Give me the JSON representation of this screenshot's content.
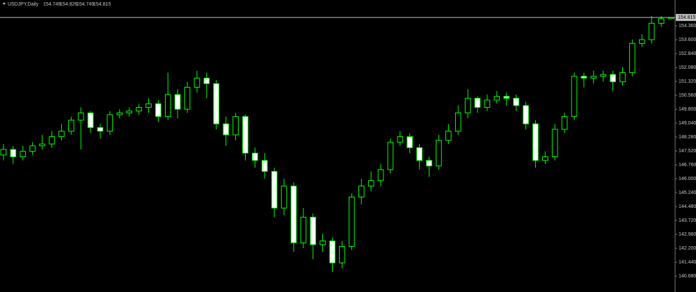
{
  "chart_data": {
    "type": "candlestick",
    "title": "USDJPY,Daily",
    "open": [
      147.3,
      147.6,
      147.2,
      147.5,
      147.8,
      147.9,
      148.3,
      148.6,
      149.2,
      149.6,
      148.8,
      148.6,
      149.5,
      149.6,
      149.7,
      149.9,
      150.1,
      149.4,
      150.6,
      149.8,
      151.0,
      151.5,
      151.2,
      149.0,
      148.4,
      149.4,
      147.4,
      147.0,
      146.4,
      144.4,
      145.6,
      142.5,
      143.9,
      142.4,
      142.6,
      141.4,
      142.3,
      145.0,
      145.6,
      145.9,
      146.5,
      148.0,
      148.3,
      147.7,
      147.0,
      146.7,
      148.1,
      148.6,
      149.6,
      150.4,
      149.9,
      150.3,
      150.5,
      150.4,
      150.0,
      149.0,
      147.0,
      147.2,
      148.7,
      149.4,
      151.6,
      151.5,
      151.6,
      151.7,
      151.3,
      151.8,
      153.4,
      153.6,
      154.5,
      154.749
    ],
    "high": [
      147.9,
      147.8,
      147.8,
      148.0,
      148.4,
      148.6,
      149.0,
      149.4,
      149.9,
      149.7,
      149.0,
      149.7,
      149.8,
      149.9,
      150.1,
      150.4,
      150.3,
      151.8,
      150.9,
      151.3,
      151.9,
      151.8,
      151.4,
      149.4,
      149.6,
      149.5,
      147.7,
      147.4,
      146.6,
      146.0,
      145.8,
      144.4,
      144.1,
      143.0,
      142.8,
      142.6,
      145.2,
      146.0,
      146.4,
      146.8,
      148.2,
      148.6,
      148.5,
      147.9,
      147.2,
      148.4,
      149.0,
      150.0,
      150.9,
      150.5,
      150.6,
      150.8,
      150.7,
      150.6,
      150.2,
      149.2,
      147.5,
      149.0,
      149.6,
      151.8,
      151.8,
      151.9,
      151.9,
      151.9,
      152.1,
      153.6,
      153.9,
      154.9,
      154.9,
      154.826
    ],
    "low": [
      147.0,
      146.8,
      147.0,
      147.3,
      147.6,
      147.7,
      148.1,
      148.4,
      147.6,
      148.5,
      148.2,
      148.4,
      149.3,
      149.4,
      149.5,
      149.6,
      149.1,
      149.2,
      149.3,
      149.6,
      150.7,
      150.4,
      148.7,
      147.8,
      148.1,
      147.0,
      146.6,
      146.0,
      143.9,
      144.0,
      142.0,
      142.2,
      141.6,
      142.0,
      140.9,
      141.1,
      142.1,
      144.6,
      145.3,
      145.6,
      146.3,
      147.8,
      147.4,
      146.5,
      146.1,
      146.5,
      147.9,
      148.4,
      149.3,
      149.6,
      149.7,
      150.1,
      150.0,
      149.7,
      148.7,
      146.6,
      146.8,
      147.0,
      148.5,
      149.2,
      151.0,
      151.2,
      151.3,
      150.8,
      151.1,
      151.6,
      153.2,
      153.4,
      154.3,
      154.749
    ],
    "close": [
      147.6,
      147.2,
      147.5,
      147.8,
      147.9,
      148.3,
      148.6,
      149.2,
      149.6,
      148.8,
      148.6,
      149.5,
      149.6,
      149.7,
      149.9,
      150.1,
      149.4,
      150.6,
      149.8,
      151.0,
      151.5,
      151.2,
      149.0,
      148.4,
      149.4,
      147.4,
      147.0,
      146.4,
      144.4,
      145.6,
      142.5,
      143.9,
      142.4,
      142.6,
      141.4,
      142.3,
      145.0,
      145.6,
      145.9,
      146.5,
      148.0,
      148.3,
      147.7,
      147.0,
      146.7,
      148.1,
      148.6,
      149.6,
      150.4,
      149.9,
      150.3,
      150.5,
      150.4,
      150.0,
      149.0,
      147.0,
      147.2,
      148.7,
      149.4,
      151.6,
      151.5,
      151.6,
      151.7,
      151.3,
      151.8,
      153.4,
      153.6,
      154.5,
      154.749,
      154.815
    ],
    "color": "#00ff00",
    "ylim": [
      139.81,
      155.77
    ],
    "yticks": [
      {
        "value": 140.68,
        "label": "140.680"
      },
      {
        "value": 141.44,
        "label": "141.440"
      },
      {
        "value": 142.2,
        "label": "142.200"
      },
      {
        "value": 142.96,
        "label": "142.960"
      },
      {
        "value": 143.72,
        "label": "143.720"
      },
      {
        "value": 144.48,
        "label": "144.480"
      },
      {
        "value": 145.24,
        "label": "145.240"
      },
      {
        "value": 146.0,
        "label": "146.000"
      },
      {
        "value": 146.76,
        "label": "146.760"
      },
      {
        "value": 147.52,
        "label": "147.520"
      },
      {
        "value": 148.28,
        "label": "148.280"
      },
      {
        "value": 149.04,
        "label": "149.040"
      },
      {
        "value": 149.8,
        "label": "149.800"
      },
      {
        "value": 150.56,
        "label": "150.560"
      },
      {
        "value": 151.32,
        "label": "151.320"
      },
      {
        "value": 152.08,
        "label": "152.080"
      },
      {
        "value": 152.84,
        "label": "152.840"
      },
      {
        "value": 153.6,
        "label": "153.600"
      },
      {
        "value": 154.36,
        "label": "154.360"
      }
    ],
    "bid": 154.815
  }
}
